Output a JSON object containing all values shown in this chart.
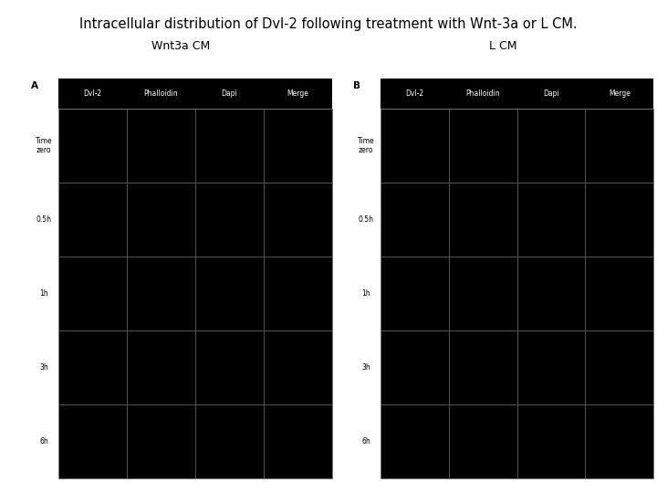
{
  "title": "Intracellular distribution of Dvl-2 following treatment with Wnt-3a or L CM.",
  "title_fontsize": 10.5,
  "panel_A_label": "Wnt3a CM",
  "panel_B_label": "L CM",
  "panel_label_A": "A",
  "panel_label_B": "B",
  "col_labels": [
    "Dvl-2",
    "Phalloidin",
    "Dapi",
    "Merge"
  ],
  "row_labels": [
    "Time\nzero",
    "0.5h",
    "1h",
    "3h",
    "6h"
  ],
  "background_color": "#ffffff",
  "cell_bg": "#000000",
  "col_label_color": "#ffffff",
  "row_label_color": "#000000",
  "panel_title_fontsize": 9,
  "col_label_fontsize": 5.5,
  "row_label_fontsize": 5.5,
  "grid_color": "#888888",
  "fig_width": 7.2,
  "fig_height": 5.4
}
